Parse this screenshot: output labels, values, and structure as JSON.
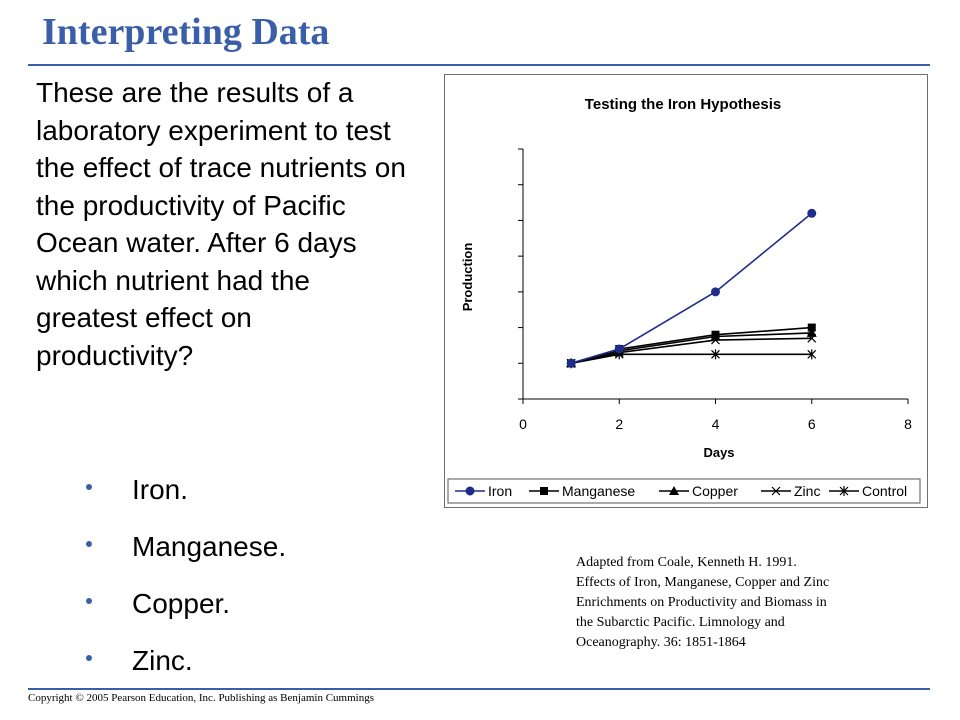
{
  "slide": {
    "title": "Interpreting Data",
    "question": "These are the results of a laboratory experiment to test the effect of trace nutrients on the productivity of Pacific Ocean water. After 6 days which nutrient had the greatest effect on productivity?",
    "answers": [
      "Iron.",
      "Manganese.",
      "Copper.",
      "Zinc."
    ],
    "citation_lines": [
      "Adapted from Coale, Kenneth H. 1991.",
      "Effects of Iron, Manganese, Copper and Zinc",
      "Enrichments on Productivity and Biomass in",
      "the  Subarctic Pacific.  Limnology and",
      "Oceanography. 36: 1851-1864"
    ],
    "copyright": "Copyright © 2005 Pearson Education, Inc. Publishing as Benjamin Cummings",
    "accent_color": "#3a5fa8"
  },
  "chart_data": {
    "type": "line",
    "title": "Testing the Iron Hypothesis",
    "xlabel": "Days",
    "ylabel": "Production",
    "x": [
      1,
      2,
      4,
      6
    ],
    "xlim": [
      0,
      8
    ],
    "xticks": [
      "0",
      "2",
      "4",
      "6",
      "8"
    ],
    "ylim": [
      0,
      7
    ],
    "y_tick_labels_shown": false,
    "grid": false,
    "legend": "bottom",
    "series": [
      {
        "name": "Iron",
        "marker": "circle",
        "color": "#1f2d8a",
        "values": [
          1,
          1.4,
          3.0,
          5.2
        ]
      },
      {
        "name": "Manganese",
        "marker": "square",
        "color": "#000000",
        "values": [
          1,
          1.4,
          1.8,
          2.0
        ]
      },
      {
        "name": "Copper",
        "marker": "triangle",
        "color": "#000000",
        "values": [
          1,
          1.35,
          1.75,
          1.85
        ]
      },
      {
        "name": "Zinc",
        "marker": "x",
        "color": "#000000",
        "values": [
          1,
          1.3,
          1.65,
          1.7
        ]
      },
      {
        "name": "Control",
        "marker": "star",
        "color": "#000000",
        "values": [
          1,
          1.25,
          1.25,
          1.25
        ]
      }
    ]
  }
}
